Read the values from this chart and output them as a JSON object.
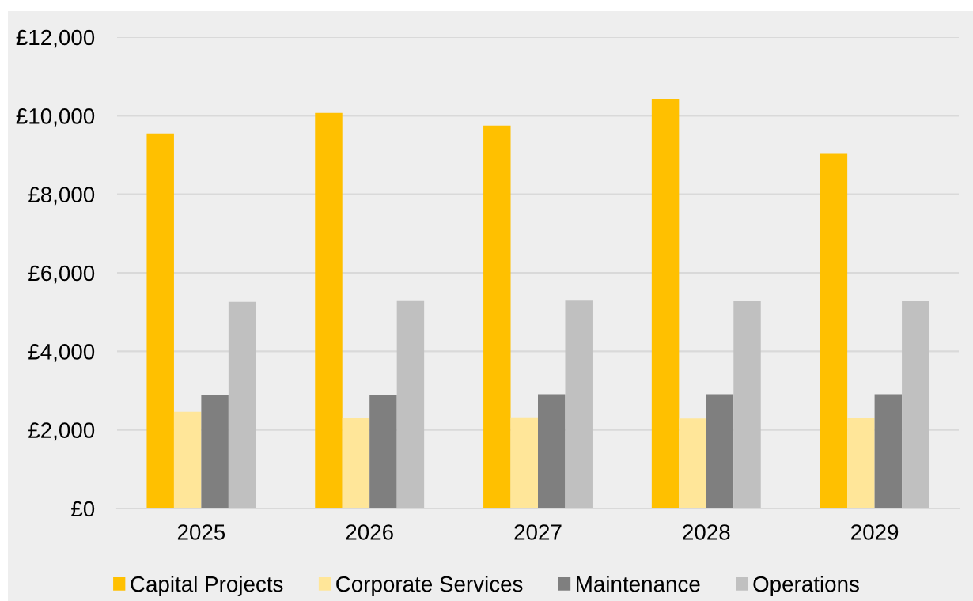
{
  "chart_data": {
    "type": "bar",
    "categories": [
      "2025",
      "2026",
      "2027",
      "2028",
      "2029"
    ],
    "series": [
      {
        "name": "Capital Projects",
        "color": "#ffc000",
        "values": [
          9550,
          10070,
          9750,
          10430,
          9030
        ]
      },
      {
        "name": "Corporate Services",
        "color": "#ffe699",
        "values": [
          2460,
          2300,
          2320,
          2290,
          2300
        ]
      },
      {
        "name": "Maintenance",
        "color": "#7f7f7f",
        "values": [
          2880,
          2880,
          2910,
          2910,
          2910
        ]
      },
      {
        "name": "Operations",
        "color": "#c0c0c0",
        "values": [
          5260,
          5300,
          5310,
          5290,
          5290
        ]
      }
    ],
    "ylim": [
      0,
      12000
    ],
    "yticks": [
      {
        "value": 0,
        "label": "£0"
      },
      {
        "value": 2000,
        "label": "£2,000"
      },
      {
        "value": 4000,
        "label": "£4,000"
      },
      {
        "value": 6000,
        "label": "£6,000"
      },
      {
        "value": 8000,
        "label": "£8,000"
      },
      {
        "value": 10000,
        "label": "£10,000"
      },
      {
        "value": 12000,
        "label": "£12,000"
      }
    ],
    "grid": "y",
    "legend": "bottom"
  }
}
